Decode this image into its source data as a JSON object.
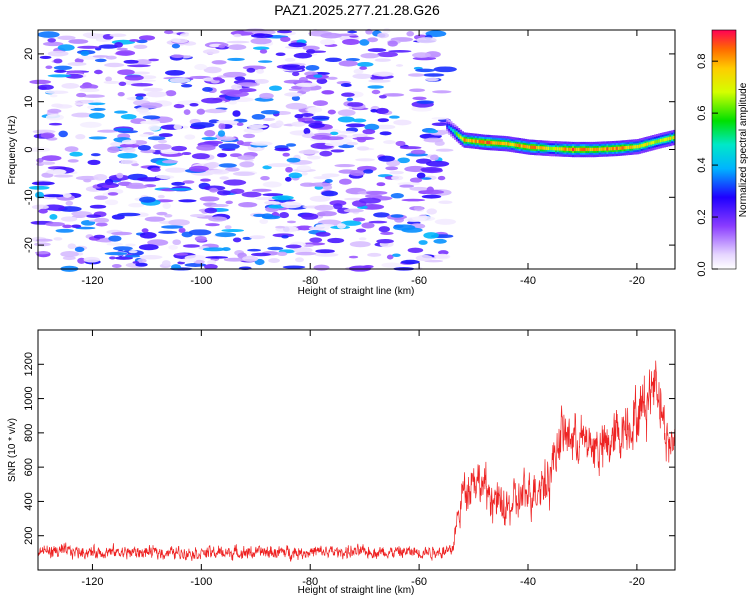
{
  "title": "PAZ1.2025.277.21.28.G26",
  "chart_data": [
    {
      "type": "heatmap",
      "title": "PAZ1.2025.277.21.28.G26",
      "xlabel": "Height of straight line (km)",
      "ylabel": "Frequency (Hz)",
      "xlim": [
        -130,
        -13
      ],
      "ylim": [
        -25,
        25
      ],
      "xticks": [
        -120,
        -100,
        -80,
        -60,
        -40,
        -20
      ],
      "yticks": [
        -20,
        -10,
        0,
        10,
        20
      ],
      "colorbar": {
        "label": "Normalized spectral amplitude",
        "range": [
          0.0,
          0.92
        ],
        "ticks": [
          0.0,
          0.2,
          0.4,
          0.6,
          0.8
        ],
        "tick_labels": [
          "0.0",
          "0.2",
          "0.4",
          "0.6",
          "0.8"
        ]
      },
      "description_of_content": "Scattered noise (amplitude ~0.1-0.4) for heights below -55 km; a narrow high-amplitude ridge near 0-2 Hz for heights above -55 km",
      "noise_region": {
        "x_range": [
          -130,
          -55
        ],
        "freq_range": [
          -25,
          25
        ],
        "amplitude_range": [
          0.02,
          0.4
        ]
      },
      "signal_ridge": {
        "heights_km": [
          -55,
          -52,
          -48,
          -44,
          -40,
          -36,
          -32,
          -28,
          -24,
          -20,
          -16,
          -13
        ],
        "frequency_hz": [
          5.0,
          2.0,
          1.5,
          1.2,
          0.5,
          0.2,
          0.0,
          0.0,
          0.2,
          0.6,
          1.8,
          2.6
        ],
        "peak_amplitude": [
          0.3,
          0.85,
          0.9,
          0.8,
          0.9,
          0.75,
          0.9,
          0.85,
          0.9,
          0.8,
          0.7,
          0.8
        ]
      }
    },
    {
      "type": "line",
      "xlabel": "Height of straight line (km)",
      "ylabel": "SNR (10 * v/v)",
      "xlim": [
        -130,
        -13
      ],
      "ylim": [
        0,
        1400
      ],
      "xticks": [
        -120,
        -100,
        -80,
        -60,
        -40,
        -20
      ],
      "yticks": [
        200,
        400,
        600,
        800,
        1000,
        1200
      ],
      "color": "#ee2222",
      "series": [
        {
          "name": "SNR",
          "envelope_x": [
            -130,
            -120,
            -100,
            -80,
            -60,
            -54,
            -52,
            -50,
            -46,
            -44,
            -40,
            -36,
            -34,
            -30,
            -26,
            -22,
            -20,
            -18,
            -16.5,
            -15,
            -14,
            -13
          ],
          "envelope_mean": [
            110,
            105,
            100,
            105,
            105,
            110,
            450,
            550,
            400,
            350,
            450,
            550,
            800,
            750,
            700,
            850,
            900,
            1000,
            1150,
            850,
            700,
            780
          ],
          "envelope_spread": [
            60,
            55,
            55,
            55,
            55,
            60,
            180,
            200,
            180,
            170,
            200,
            220,
            220,
            220,
            230,
            250,
            250,
            250,
            250,
            220,
            200,
            200
          ]
        }
      ]
    }
  ]
}
